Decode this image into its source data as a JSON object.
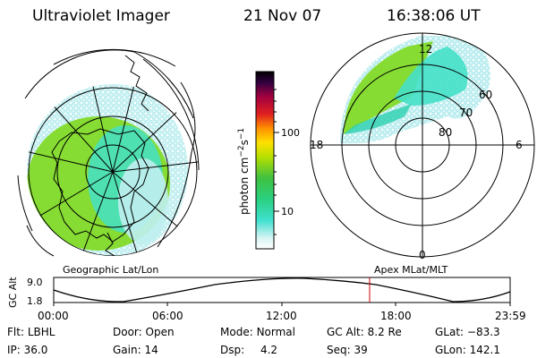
{
  "header": {
    "title": "Ultraviolet Imager",
    "date": "21 Nov 07",
    "time": "16:38:06 UT"
  },
  "panels": {
    "geo_label": "Geographic Lat/Lon",
    "apex_label": "Apex MLat/MLT",
    "apex_mlt_labels": [
      "12",
      "18",
      "6",
      "0"
    ],
    "apex_lat_labels": [
      "60",
      "70",
      "80"
    ]
  },
  "colorbar": {
    "label": "photon cm",
    "label_sup1": "−2",
    "label_s": "s",
    "label_sup2": "−1",
    "ticks": [
      "100",
      "10"
    ]
  },
  "timeline": {
    "ylabel": "GC Alt",
    "ytick_top": "9.0",
    "ytick_bottom": "1.8",
    "xticks": [
      "00:00",
      "06:00",
      "12:00",
      "18:00",
      "23:59"
    ],
    "current_marker_color": "#cc0000"
  },
  "info": {
    "row1": [
      {
        "key": "Flt:",
        "val": "LBHL"
      },
      {
        "key": "Door:",
        "val": "Open"
      },
      {
        "key": "Mode:",
        "val": "Normal"
      },
      {
        "key": "GC Alt:",
        "val": "8.2 Re"
      },
      {
        "key": "GLat:",
        "val": "−83.3"
      }
    ],
    "row2": [
      {
        "key": "IP:",
        "val": "36.0"
      },
      {
        "key": "Gain:",
        "val": "14"
      },
      {
        "key": "Dsp:",
        "val": "4.2"
      },
      {
        "key": "Seq:",
        "val": "39"
      },
      {
        "key": "GLon:",
        "val": "142.1"
      }
    ]
  },
  "colors": {
    "aurora_green": "#7fdc2a",
    "aurora_cyan": "#3fe0d8",
    "light_cyan": "#bfeef0"
  }
}
